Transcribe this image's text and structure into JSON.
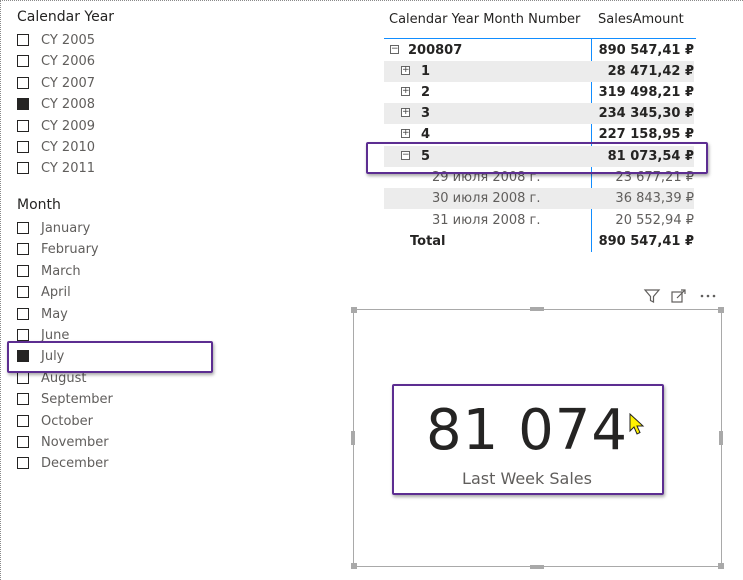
{
  "year_slicer": {
    "title": "Calendar Year",
    "items": [
      {
        "label": "CY 2005",
        "checked": false
      },
      {
        "label": "CY 2006",
        "checked": false
      },
      {
        "label": "CY 2007",
        "checked": false
      },
      {
        "label": "CY 2008",
        "checked": true
      },
      {
        "label": "CY 2009",
        "checked": false
      },
      {
        "label": "CY 2010",
        "checked": false
      },
      {
        "label": "CY 2011",
        "checked": false
      }
    ]
  },
  "month_slicer": {
    "title": "Month",
    "items": [
      {
        "label": "January",
        "checked": false
      },
      {
        "label": "February",
        "checked": false
      },
      {
        "label": "March",
        "checked": false
      },
      {
        "label": "April",
        "checked": false
      },
      {
        "label": "May",
        "checked": false
      },
      {
        "label": "June",
        "checked": false
      },
      {
        "label": "July",
        "checked": true
      },
      {
        "label": "August",
        "checked": false
      },
      {
        "label": "September",
        "checked": false
      },
      {
        "label": "October",
        "checked": false
      },
      {
        "label": "November",
        "checked": false
      },
      {
        "label": "December",
        "checked": false
      }
    ]
  },
  "matrix": {
    "col1": "Calendar Year Month Number",
    "col2": "SalesAmount",
    "rows": [
      {
        "label": "200807",
        "value": "890 547,41 ₽",
        "expander": "−"
      },
      {
        "label": "1",
        "value": "28 471,42 ₽",
        "expander": "+"
      },
      {
        "label": "2",
        "value": "319 498,21 ₽",
        "expander": "+"
      },
      {
        "label": "3",
        "value": "234 345,30 ₽",
        "expander": "+"
      },
      {
        "label": "4",
        "value": "227 158,95 ₽",
        "expander": "+"
      },
      {
        "label": "5",
        "value": "81 073,54 ₽",
        "expander": "−"
      },
      {
        "label": "29 июля 2008 г.",
        "value": "23 677,21 ₽"
      },
      {
        "label": "30 июля 2008 г.",
        "value": "36 843,39 ₽"
      },
      {
        "label": "31 июля 2008 г.",
        "value": "20 552,94 ₽"
      },
      {
        "label": "Total",
        "value": "890 547,41 ₽"
      }
    ]
  },
  "card": {
    "value": "81 074",
    "label": "Last Week Sales",
    "header_icons": [
      "filter-icon",
      "focus-mode-icon",
      "more-options-icon"
    ]
  },
  "colors": {
    "highlight": "#5c2d91",
    "accent": "#118dff"
  }
}
